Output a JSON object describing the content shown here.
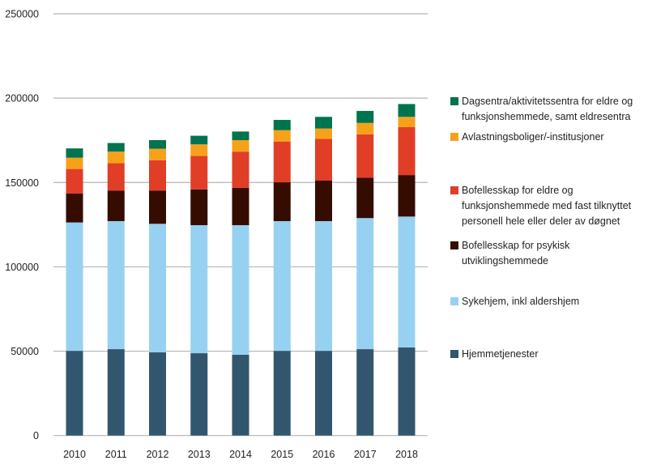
{
  "chart_data": {
    "type": "bar",
    "stacked": true,
    "title": "",
    "xlabel": "",
    "ylabel": "",
    "ylim": [
      0,
      250000
    ],
    "yticks": [
      0,
      50000,
      100000,
      150000,
      200000,
      250000
    ],
    "grid": true,
    "legend_placement": "right",
    "categories": [
      "2010",
      "2011",
      "2012",
      "2013",
      "2014",
      "2015",
      "2016",
      "2017",
      "2018"
    ],
    "series": [
      {
        "name": "Hjemmetjenester",
        "color": "#31566e",
        "values": [
          50200,
          51200,
          49300,
          48800,
          47900,
          50200,
          50200,
          51200,
          52200
        ]
      },
      {
        "name": "Sykehjem, inkl aldershjem",
        "color": "#97d1f1",
        "values": [
          76100,
          75900,
          76200,
          75900,
          76800,
          76900,
          76900,
          77700,
          77600
        ]
      },
      {
        "name": "Bofellesskap for psykisk utviklingshemmede",
        "color": "#350c00",
        "values": [
          17100,
          18000,
          19600,
          21200,
          22100,
          23000,
          24000,
          23900,
          24600
        ]
      },
      {
        "name": "Bofellesskap for eldre og funksjonshemmede med fast tilknyttet personell hele eller deler av døgnet",
        "color": "#e03e26",
        "values": [
          14600,
          16300,
          18100,
          19800,
          21500,
          24200,
          24800,
          25700,
          28400
        ]
      },
      {
        "name": "Avlastningsboliger/-institusjoner",
        "color": "#f7a11a",
        "values": [
          6700,
          6900,
          6800,
          6900,
          6800,
          6700,
          6100,
          6800,
          6100
        ]
      },
      {
        "name": "Dagsentra/aktivitetssentra for eldre og funksjonshemmede, samt eldresentra",
        "color": "#00734f",
        "values": [
          5500,
          5100,
          5100,
          5100,
          5100,
          6100,
          6900,
          7100,
          7600
        ]
      }
    ]
  }
}
